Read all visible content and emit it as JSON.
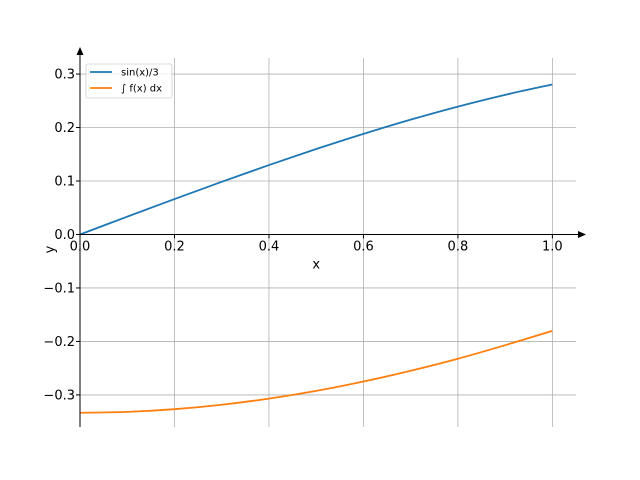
{
  "chart_data": {
    "type": "line",
    "title": "",
    "xlabel": "x",
    "ylabel": "y",
    "xlim": [
      0.0,
      1.05
    ],
    "ylim": [
      -0.36,
      0.33
    ],
    "xticks": [
      0.0,
      0.2,
      0.4,
      0.6,
      0.8,
      1.0
    ],
    "xtick_labels": [
      "0.0",
      "0.2",
      "0.4",
      "0.6",
      "0.8",
      "1.0"
    ],
    "yticks": [
      -0.3,
      -0.2,
      -0.1,
      0.0,
      0.1,
      0.2,
      0.3
    ],
    "ytick_labels": [
      "−0.3",
      "−0.2",
      "−0.1",
      "0.0",
      "0.1",
      "0.2",
      "0.3"
    ],
    "grid": true,
    "legend_position": "top-left",
    "x": [
      0.0,
      0.1,
      0.2,
      0.3,
      0.4,
      0.5,
      0.6,
      0.7,
      0.8,
      0.9,
      1.0
    ],
    "series": [
      {
        "name": "sin(x)/3",
        "color": "#1f77b4",
        "values": [
          0.0,
          0.0333,
          0.0662,
          0.0985,
          0.1298,
          0.1598,
          0.1882,
          0.2147,
          0.2391,
          0.2611,
          0.2805
        ]
      },
      {
        "name": "∫ f(x) dx",
        "color": "#ff7f0e",
        "values": [
          -0.3333,
          -0.3317,
          -0.3267,
          -0.3184,
          -0.3069,
          -0.2925,
          -0.275,
          -0.2548,
          -0.2323,
          -0.207,
          -0.1802
        ]
      }
    ]
  }
}
